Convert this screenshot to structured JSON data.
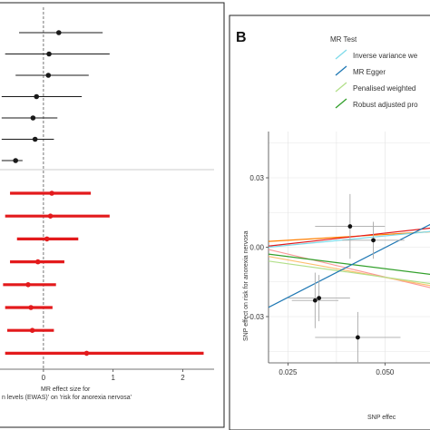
{
  "chart_data": [
    {
      "type": "forest",
      "panel_label": "",
      "xlabel_lines": [
        "MR effect size for",
        "n levels (EWAS)' on 'risk for anorexia nervosa'"
      ],
      "xlim": [
        -0.65,
        2.45
      ],
      "xticks": [
        {
          "v": 0,
          "label": "0"
        },
        {
          "v": 1,
          "label": "1"
        },
        {
          "v": 2,
          "label": "2"
        }
      ],
      "colors": {
        "group1": "#1a1a1a",
        "group2": "#e31a1c",
        "zero_line": "#555555",
        "separator": "#999999"
      },
      "group1_rows": [
        {
          "est": 0.22,
          "lo": -0.35,
          "hi": 0.85
        },
        {
          "est": 0.08,
          "lo": -0.55,
          "hi": 0.95
        },
        {
          "est": 0.07,
          "lo": -0.4,
          "hi": 0.65
        },
        {
          "est": -0.1,
          "lo": -0.6,
          "hi": 0.55
        },
        {
          "est": -0.15,
          "lo": -0.6,
          "hi": 0.2
        },
        {
          "est": -0.12,
          "lo": -0.6,
          "hi": 0.15
        },
        {
          "est": -0.4,
          "lo": -0.6,
          "hi": -0.3
        }
      ],
      "group2_rows": [
        {
          "est": 0.12,
          "lo": -0.48,
          "hi": 0.68
        },
        {
          "est": 0.1,
          "lo": -0.55,
          "hi": 0.95
        },
        {
          "est": 0.05,
          "lo": -0.38,
          "hi": 0.5
        },
        {
          "est": -0.08,
          "lo": -0.48,
          "hi": 0.3
        },
        {
          "est": -0.22,
          "lo": -0.58,
          "hi": 0.18
        },
        {
          "est": -0.18,
          "lo": -0.55,
          "hi": 0.13
        },
        {
          "est": -0.16,
          "lo": -0.52,
          "hi": 0.15
        },
        {
          "est": 0.62,
          "lo": -0.55,
          "hi": 2.3
        }
      ]
    },
    {
      "type": "scatter",
      "panel_label": "B",
      "xlabel": "SNP effec",
      "ylabel": "SNP effect on risk for anorexia nervosa",
      "xlim": [
        0.02,
        0.063
      ],
      "ylim": [
        -0.05,
        0.05
      ],
      "xticks": [
        {
          "v": 0.025,
          "label": "0.025"
        },
        {
          "v": 0.05,
          "label": "0.050"
        }
      ],
      "yticks": [
        {
          "v": 0.03,
          "label": "0.03"
        },
        {
          "v": 0.0,
          "label": "0.00"
        },
        {
          "v": -0.03,
          "label": "-0.03"
        }
      ],
      "grid": true,
      "legend": {
        "title": "MR Test",
        "placement": "top",
        "entries": [
          {
            "label": "Inverse variance we",
            "color": "#7fdbea"
          },
          {
            "label": "MR Egger",
            "color": "#1f78b4"
          },
          {
            "label": "Penalised weighted",
            "color": "#b2df8a"
          },
          {
            "label": "Robust adjusted pro",
            "color": "#33a02c"
          }
        ]
      },
      "points": [
        {
          "x": 0.041,
          "y": 0.009,
          "xerr": 0.009,
          "yerr": 0.014
        },
        {
          "x": 0.047,
          "y": 0.003,
          "xerr": 0.008,
          "yerr": 0.008
        },
        {
          "x": 0.032,
          "y": -0.023,
          "xerr": 0.006,
          "yerr": 0.012
        },
        {
          "x": 0.033,
          "y": -0.022,
          "xerr": 0.008,
          "yerr": 0.01
        },
        {
          "x": 0.043,
          "y": -0.039,
          "xerr": 0.011,
          "yerr": 0.011
        }
      ],
      "lines": [
        {
          "color": "#fb9a99",
          "x": [
            0.02,
            0.063
          ],
          "y": [
            -0.001,
            -0.018
          ]
        },
        {
          "color": "#ff7f00",
          "x": [
            0.02,
            0.063
          ],
          "y": [
            0.0025,
            0.0068
          ]
        },
        {
          "color": "#e31a1c",
          "x": [
            0.02,
            0.063
          ],
          "y": [
            0.0005,
            0.0085
          ]
        },
        {
          "color": "#fdbf6f",
          "x": [
            0.02,
            0.063
          ],
          "y": [
            -0.004,
            -0.017
          ]
        },
        {
          "color": "#b2df8a",
          "x": [
            0.02,
            0.063
          ],
          "y": [
            -0.006,
            -0.016
          ]
        },
        {
          "color": "#33a02c",
          "x": [
            0.02,
            0.063
          ],
          "y": [
            -0.003,
            -0.012
          ]
        },
        {
          "color": "#7fdbea",
          "x": [
            0.02,
            0.063
          ],
          "y": [
            0.0,
            0.007
          ]
        },
        {
          "color": "#1f78b4",
          "x": [
            0.02,
            0.063
          ],
          "y": [
            -0.026,
            0.011
          ]
        }
      ]
    }
  ]
}
